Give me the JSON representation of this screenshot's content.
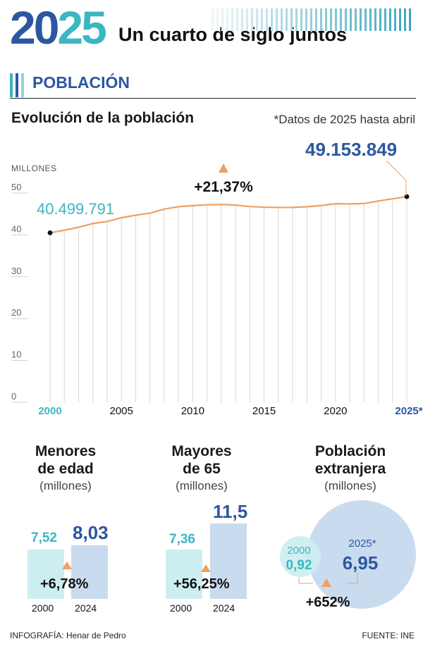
{
  "header": {
    "logo_part1": "20",
    "logo_part2": "25",
    "title": "Un cuarto de siglo juntos"
  },
  "section": {
    "title": "POBLACIÓN"
  },
  "chart_title": "Evolución de la población",
  "chart_note": "*Datos de 2025 hasta abril",
  "chart_data": {
    "type": "line",
    "title": "Evolución de la población",
    "ylabel": "MILLONES",
    "ylim": [
      0,
      50
    ],
    "yticks": [
      0,
      10,
      20,
      30,
      40,
      50
    ],
    "xticks": [
      "2000",
      "2005",
      "2010",
      "2015",
      "2020",
      "2025*"
    ],
    "x": [
      2000,
      2001,
      2002,
      2003,
      2004,
      2005,
      2006,
      2007,
      2008,
      2009,
      2010,
      2011,
      2012,
      2013,
      2014,
      2015,
      2016,
      2017,
      2018,
      2019,
      2020,
      2021,
      2022,
      2023,
      2024,
      2025
    ],
    "values": [
      40.5,
      41.12,
      41.84,
      42.72,
      43.2,
      44.11,
      44.71,
      45.2,
      46.16,
      46.75,
      46.99,
      47.19,
      47.27,
      47.13,
      46.77,
      46.62,
      46.56,
      46.57,
      46.72,
      47.03,
      47.45,
      47.4,
      47.49,
      48.09,
      48.62,
      49.15
    ],
    "start_label": "40.499.791",
    "end_label": "49.153.849",
    "change_label": "+21,37%"
  },
  "stats": {
    "menores": {
      "title_line1": "Menores",
      "title_line2": "de edad",
      "unit": "(millones)",
      "year_a": "2000",
      "year_b": "2024",
      "value_a": "7,52",
      "value_b": "8,03",
      "change": "+6,78%"
    },
    "mayores": {
      "title_line1": "Mayores",
      "title_line2": "de 65",
      "unit": "(millones)",
      "year_a": "2000",
      "year_b": "2024",
      "value_a": "7,36",
      "value_b": "11,5",
      "change": "+56,25%"
    },
    "extranjera": {
      "title_line1": "Población",
      "title_line2": "extranjera",
      "unit": "(millones)",
      "year_a": "2000",
      "year_b": "2025*",
      "value_a": "0,92",
      "value_b": "6,95",
      "change": "+652%"
    }
  },
  "footer": {
    "credit": "INFOGRAFÍA: Henar de Pedro",
    "source": "FUENTE: INE"
  },
  "colors": {
    "teal": "#3ab7c2",
    "blue": "#2c57a0",
    "line": "#f0a060",
    "light_teal": "#cdeef1",
    "light_blue": "#c9dbee"
  }
}
